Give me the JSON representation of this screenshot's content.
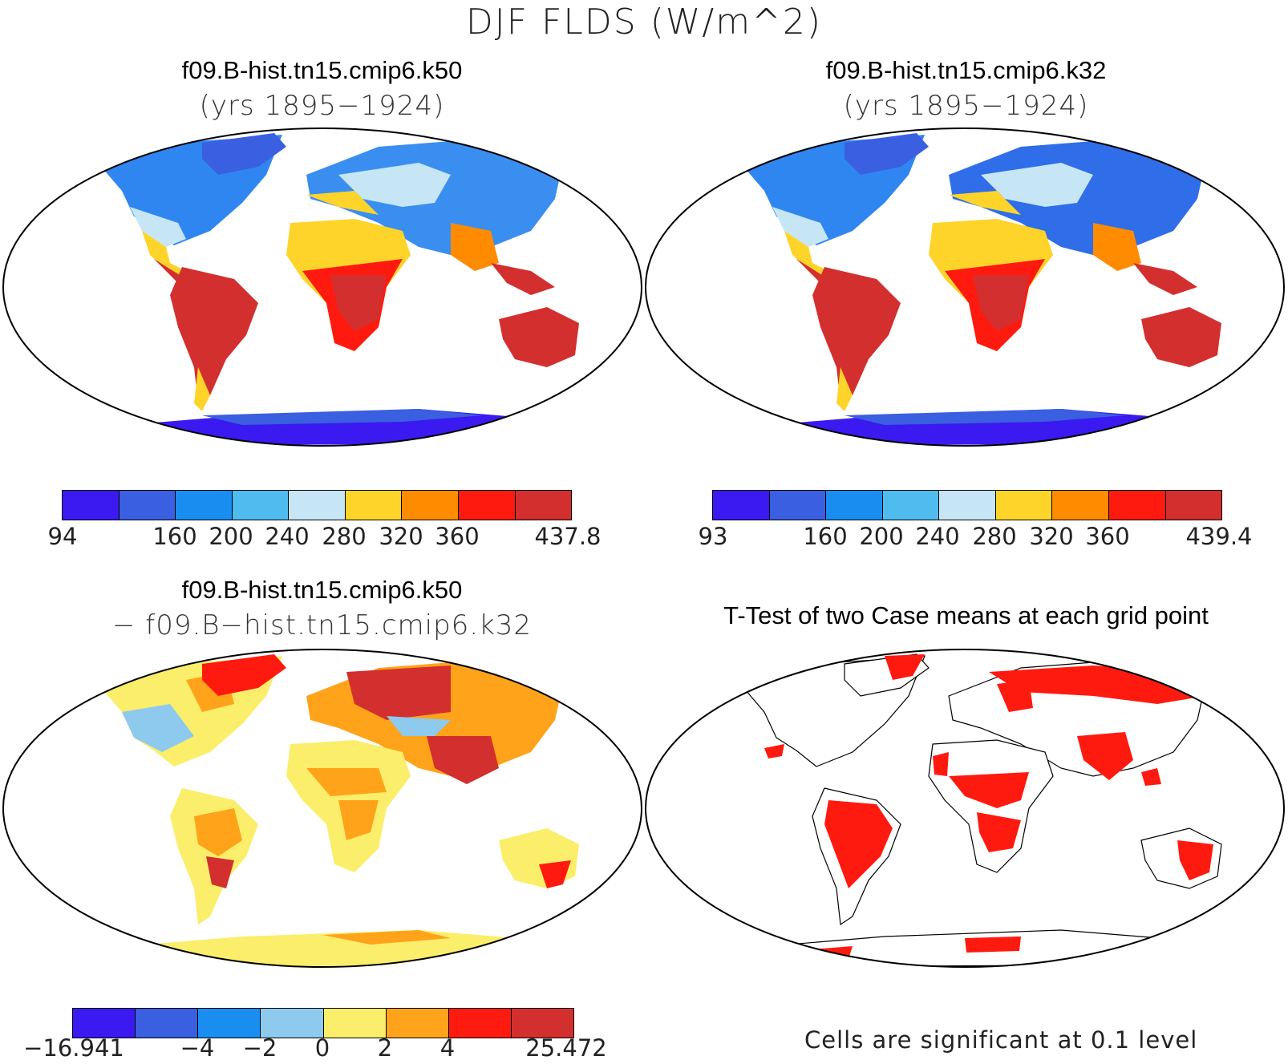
{
  "title": "DJF FLDS (W/m^2)",
  "panels": [
    {
      "title": "f09.B-hist.tn15.cmip6.k50",
      "subtitle": "(yrs 1895−1924)",
      "colorbar": {
        "colors": [
          "#3a1af0",
          "#3a5fe0",
          "#1a8ef0",
          "#4fbcf0",
          "#c6e6f6",
          "#ffd42a",
          "#ff8c00",
          "#ff1a10",
          "#d32f2f"
        ],
        "ticks": [
          "94",
          "160",
          "200",
          "240",
          "280",
          "320",
          "360",
          "437.8"
        ]
      }
    },
    {
      "title": "f09.B-hist.tn15.cmip6.k32",
      "subtitle": "(yrs 1895−1924)",
      "colorbar": {
        "colors": [
          "#3a1af0",
          "#3a5fe0",
          "#1a8ef0",
          "#4fbcf0",
          "#c6e6f6",
          "#ffd42a",
          "#ff8c00",
          "#ff1a10",
          "#d32f2f"
        ],
        "ticks": [
          "93",
          "160",
          "200",
          "240",
          "280",
          "320",
          "360",
          "439.4"
        ]
      }
    },
    {
      "title": "f09.B-hist.tn15.cmip6.k50",
      "subtitle": "− f09.B−hist.tn15.cmip6.k32",
      "colorbar": {
        "colors": [
          "#3a1af0",
          "#3a5fe0",
          "#1a8ef0",
          "#8ec9ee",
          "#fbee6a",
          "#ffa31a",
          "#ff1a10",
          "#d32f2f"
        ],
        "ticks": [
          "−16.941",
          "−4",
          "−2",
          "0",
          "2",
          "4",
          "25.472"
        ]
      }
    },
    {
      "title": "T-Test of two Case means at each grid point",
      "note": "Cells are significant at 0.1 level",
      "sig_color": "#ff1a10"
    }
  ]
}
